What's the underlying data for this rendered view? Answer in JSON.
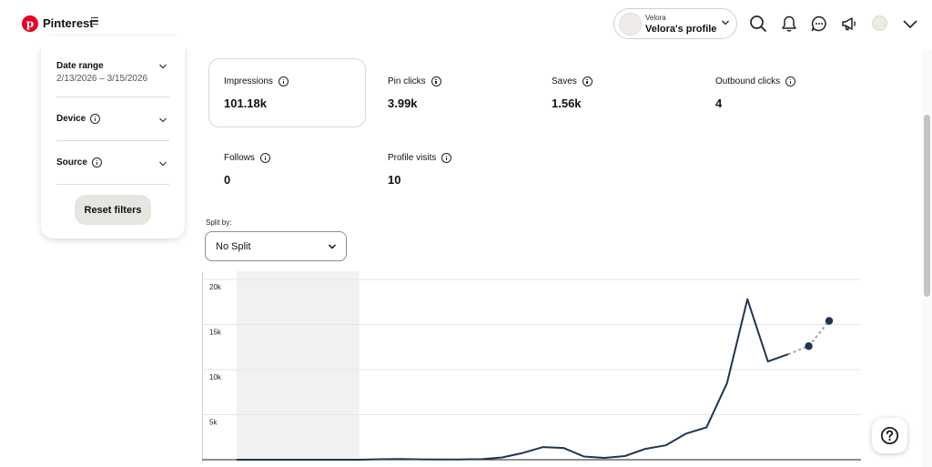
{
  "header": {
    "brand": "Pinterest",
    "profile_small": "Velora",
    "profile_name": "Velora's profile",
    "colors": {
      "brand": "#e60023"
    }
  },
  "filters": {
    "date_range_label": "Date range",
    "date_range_value": "2/13/2026 – 3/15/2026",
    "device_label": "Device",
    "source_label": "Source",
    "reset_label": "Reset filters"
  },
  "metrics": [
    {
      "label": "Impressions",
      "value": "101.18k"
    },
    {
      "label": "Pin clicks",
      "value": "3.99k"
    },
    {
      "label": "Saves",
      "value": "1.56k"
    },
    {
      "label": "Outbound clicks",
      "value": "4"
    },
    {
      "label": "Follows",
      "value": "0"
    },
    {
      "label": "Profile visits",
      "value": "10"
    }
  ],
  "split": {
    "label": "Split by:",
    "value": "No Split"
  },
  "chart_data": {
    "type": "line",
    "ytick_labels": [
      "20k",
      "15k",
      "10k",
      "5k"
    ],
    "yticks": [
      20000,
      15000,
      10000,
      5000
    ],
    "ylim": [
      0,
      20500
    ],
    "x_index_range": [
      0,
      29
    ],
    "grid": true,
    "line_color": "#1f3552",
    "shaded_index_range": [
      0,
      6
    ],
    "values": [
      0,
      0,
      0,
      0,
      0,
      0,
      0,
      50,
      80,
      40,
      30,
      30,
      60,
      250,
      750,
      1400,
      1300,
      350,
      200,
      400,
      1200,
      1600,
      2900,
      3600,
      8500,
      17800,
      10900,
      11700
    ],
    "projection": [
      {
        "index": 27,
        "value": 11700
      },
      {
        "index": 28,
        "value": 12600
      },
      {
        "index": 29,
        "value": 15400
      }
    ]
  }
}
